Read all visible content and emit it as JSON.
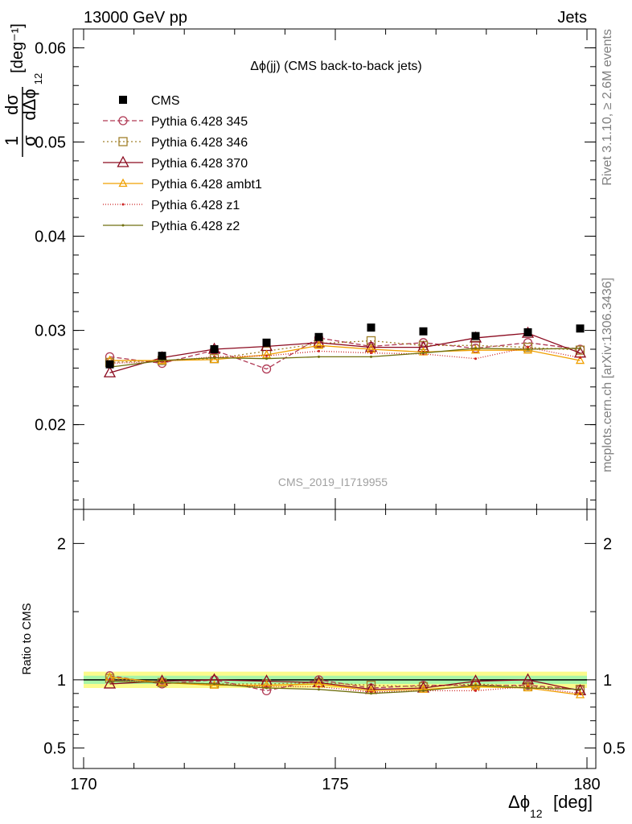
{
  "header": {
    "left": "13000 GeV pp",
    "right": "Jets"
  },
  "side": {
    "rivet": "Rivet 3.1.10, ≥ 2.6M events",
    "mcplots": "mcplots.cern.ch [arXiv:1306.3436]"
  },
  "chart_data": [
    {
      "type": "line",
      "title": "Δϕ(jj) (CMS back-to-back jets)",
      "watermark": "CMS_2019_I1719955",
      "ylabel": "1/σ dσ/dΔϕ12 [deg⁻¹]",
      "xlabel": "Δϕ12 [deg]",
      "xlim": [
        170,
        180
      ],
      "ylim": [
        0.011,
        0.062
      ],
      "yticks": [
        "0.02",
        "0.03",
        "0.04",
        "0.05",
        "0.06"
      ],
      "xticks": [
        "170",
        "175",
        "180"
      ],
      "x": [
        170.5,
        171.5,
        172.5,
        173.5,
        174.5,
        175.5,
        176.5,
        177.5,
        178.5,
        179.5
      ],
      "legend_position": "top-left",
      "series": [
        {
          "name": "CMS",
          "color": "#000000",
          "marker": "square",
          "values": [
            0.0264,
            0.0273,
            0.028,
            0.0287,
            0.0293,
            0.0303,
            0.0299,
            0.0294,
            0.0298,
            0.0302
          ]
        },
        {
          "name": "Pythia 6.428 345",
          "color": "#b03a55",
          "marker": "circle",
          "dash": "6,3",
          "values": [
            0.0272,
            0.0265,
            0.0279,
            0.0259,
            0.0292,
            0.0283,
            0.0287,
            0.0281,
            0.0287,
            0.028
          ]
        },
        {
          "name": "Pythia 6.428 346",
          "color": "#a0802a",
          "marker": "square-open",
          "dash": "2,3",
          "values": [
            0.0266,
            0.0268,
            0.027,
            0.0278,
            0.0286,
            0.0289,
            0.0284,
            0.0284,
            0.0282,
            0.0279
          ]
        },
        {
          "name": "Pythia 6.428 370",
          "color": "#8b0a1f",
          "marker": "triangle",
          "dash": "",
          "values": [
            0.0255,
            0.0271,
            0.028,
            0.0283,
            0.0287,
            0.0282,
            0.0282,
            0.0292,
            0.0297,
            0.0276
          ]
        },
        {
          "name": "Pythia 6.428 ambt1",
          "color": "#f0a000",
          "marker": "triangle-small",
          "dash": "",
          "values": [
            0.0268,
            0.0268,
            0.0269,
            0.0274,
            0.0284,
            0.028,
            0.0277,
            0.0279,
            0.0279,
            0.0268
          ]
        },
        {
          "name": "Pythia 6.428 z1",
          "color": "#cc2020",
          "marker": "dot",
          "dash": "1,2",
          "values": [
            0.0265,
            0.0267,
            0.0272,
            0.0273,
            0.0278,
            0.0276,
            0.0275,
            0.027,
            0.0282,
            0.0271
          ]
        },
        {
          "name": "Pythia 6.428 z2",
          "color": "#707010",
          "marker": "dot",
          "dash": "",
          "values": [
            0.0261,
            0.0268,
            0.0271,
            0.027,
            0.0272,
            0.0272,
            0.0276,
            0.0281,
            0.028,
            0.0281
          ]
        }
      ]
    },
    {
      "type": "line",
      "ylabel": "Ratio to CMS",
      "xlabel": "Δϕ12 [deg]",
      "xlim": [
        170,
        180
      ],
      "ylim": [
        0.35,
        2.25
      ],
      "yticks": [
        "0.5",
        "1",
        "2"
      ],
      "x": [
        170.5,
        171.5,
        172.5,
        173.5,
        174.5,
        175.5,
        176.5,
        177.5,
        178.5,
        179.5
      ],
      "band_inner": 0.03,
      "band_outer": 0.06,
      "band_colors": {
        "outer": "#fbfb8c",
        "inner": "#a8f5a8"
      },
      "series": [
        {
          "name": "Pythia 6.428 345",
          "values": [
            1.03,
            0.97,
            1.0,
            0.92,
            1.0,
            0.94,
            0.96,
            0.96,
            0.96,
            0.93
          ]
        },
        {
          "name": "Pythia 6.428 346",
          "values": [
            1.01,
            0.98,
            0.97,
            0.97,
            0.98,
            0.96,
            0.95,
            0.97,
            0.95,
            0.93
          ]
        },
        {
          "name": "Pythia 6.428 370",
          "values": [
            0.97,
            0.99,
            1.0,
            0.99,
            0.98,
            0.93,
            0.94,
            0.99,
            1.0,
            0.92
          ]
        },
        {
          "name": "Pythia 6.428 ambt1",
          "values": [
            1.02,
            0.98,
            0.96,
            0.96,
            0.97,
            0.92,
            0.93,
            0.95,
            0.94,
            0.89
          ]
        },
        {
          "name": "Pythia 6.428 z1",
          "values": [
            1.0,
            0.98,
            0.97,
            0.95,
            0.95,
            0.91,
            0.92,
            0.92,
            0.95,
            0.9
          ]
        },
        {
          "name": "Pythia 6.428 z2",
          "values": [
            0.99,
            0.98,
            0.97,
            0.94,
            0.93,
            0.9,
            0.92,
            0.96,
            0.94,
            0.93
          ]
        }
      ]
    }
  ]
}
